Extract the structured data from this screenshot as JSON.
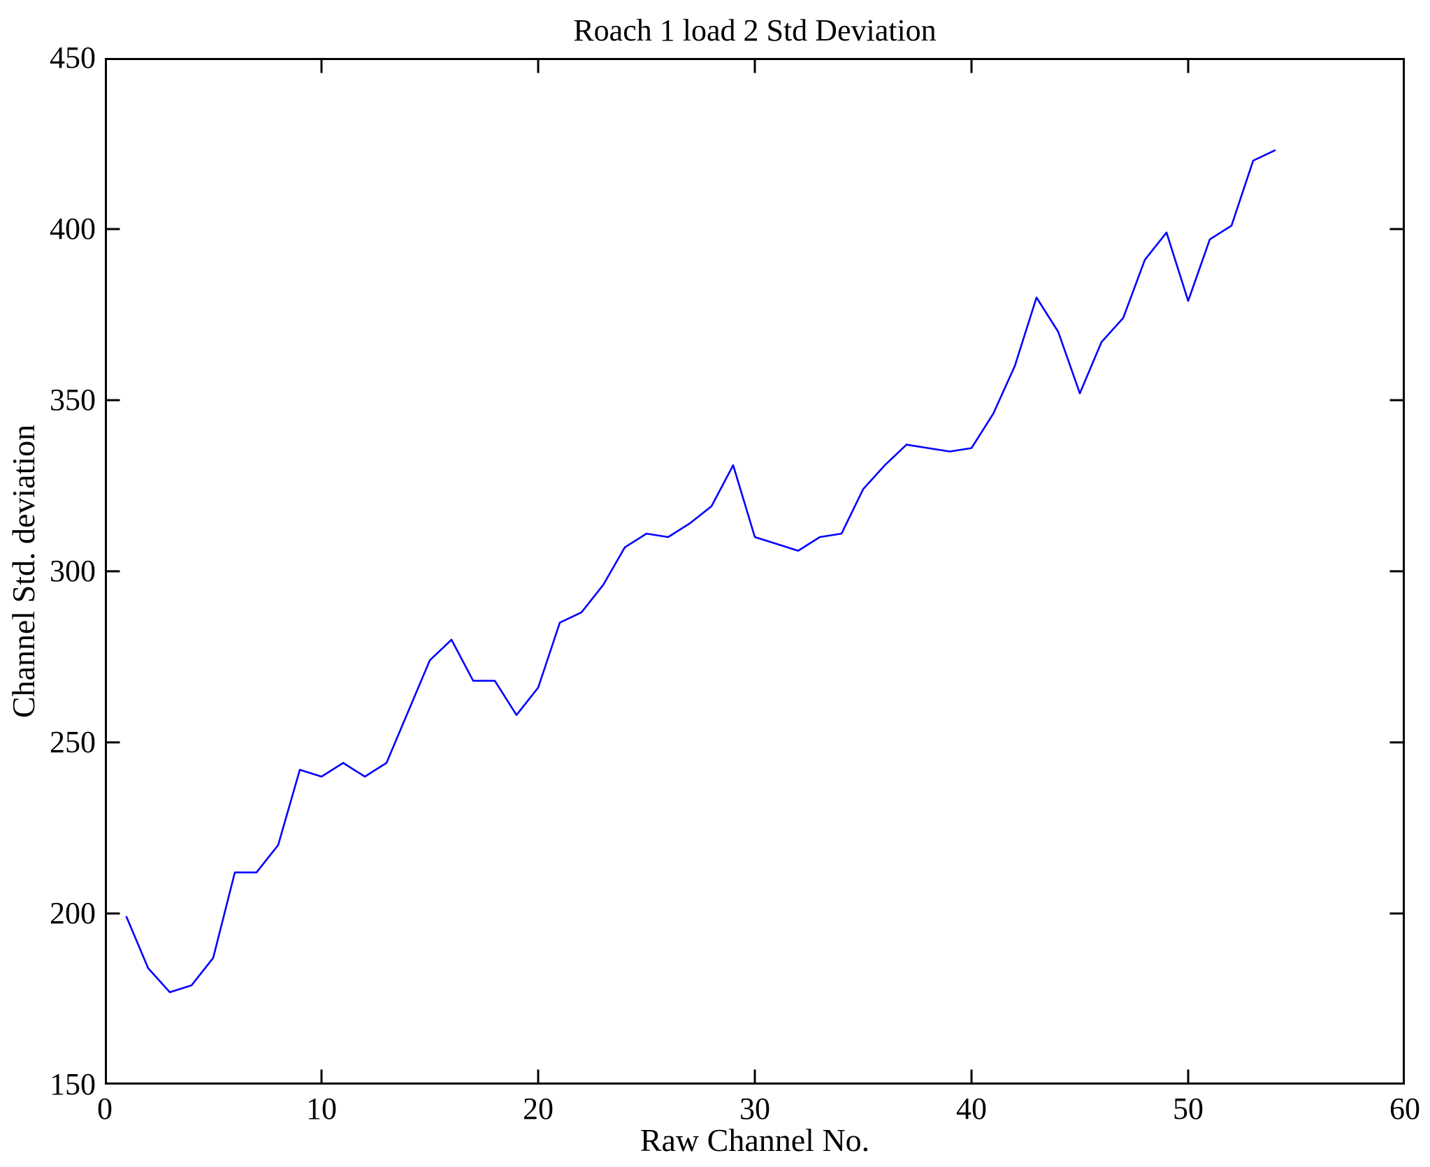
{
  "chart_data": {
    "type": "line",
    "title": "Roach 1 load 2 Std Deviation",
    "xlabel": "Raw Channel No.",
    "ylabel": "Channel Std. deviation",
    "xlim": [
      0,
      60
    ],
    "ylim": [
      150,
      450
    ],
    "xticks": [
      0,
      10,
      20,
      30,
      40,
      50,
      60
    ],
    "yticks": [
      150,
      200,
      250,
      300,
      350,
      400,
      450
    ],
    "grid": false,
    "legend_position": "none",
    "line_color": "#0000ff",
    "axis_color": "#000000",
    "background_color": "#ffffff",
    "x": [
      1,
      2,
      3,
      4,
      5,
      6,
      7,
      8,
      9,
      10,
      11,
      12,
      13,
      14,
      15,
      16,
      17,
      18,
      19,
      20,
      21,
      22,
      23,
      24,
      25,
      26,
      27,
      28,
      29,
      30,
      31,
      32,
      33,
      34,
      35,
      36,
      37,
      38,
      39,
      40,
      41,
      42,
      43,
      44,
      45,
      46,
      47,
      48,
      49,
      50,
      51,
      52,
      53,
      54
    ],
    "values": [
      199,
      184,
      177,
      179,
      187,
      212,
      212,
      220,
      242,
      240,
      244,
      240,
      244,
      259,
      274,
      280,
      268,
      268,
      258,
      266,
      285,
      288,
      296,
      307,
      311,
      310,
      314,
      319,
      331,
      310,
      308,
      306,
      310,
      311,
      324,
      331,
      337,
      336,
      335,
      336,
      346,
      360,
      380,
      370,
      352,
      367,
      374,
      391,
      399,
      379,
      397,
      401,
      420,
      423
    ]
  }
}
